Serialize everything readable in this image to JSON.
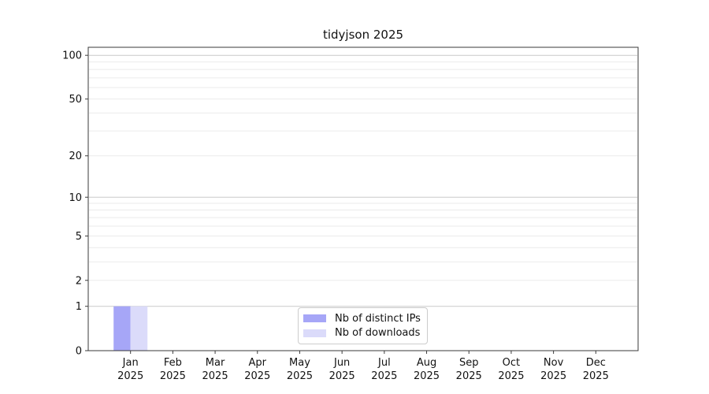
{
  "chart_data": {
    "type": "bar",
    "title": "tidyjson 2025",
    "categories": [
      "Jan 2025",
      "Feb 2025",
      "Mar 2025",
      "Apr 2025",
      "May 2025",
      "Jun 2025",
      "Jul 2025",
      "Aug 2025",
      "Sep 2025",
      "Oct 2025",
      "Nov 2025",
      "Dec 2025"
    ],
    "series": [
      {
        "name": "Nb of distinct IPs",
        "color": "#a6a6f7",
        "values": [
          1,
          0,
          0,
          0,
          0,
          0,
          0,
          0,
          0,
          0,
          0,
          0
        ]
      },
      {
        "name": "Nb of downloads",
        "color": "#dbdbfa",
        "values": [
          1,
          0,
          0,
          0,
          0,
          0,
          0,
          0,
          0,
          0,
          0,
          0
        ]
      }
    ],
    "xlabel": "",
    "ylabel": "",
    "y_scale": "log1p",
    "ylim": [
      0,
      113
    ],
    "y_ticks": [
      0,
      1,
      2,
      5,
      10,
      20,
      50,
      100
    ],
    "grid_major": [
      1,
      10,
      100
    ],
    "grid_minor": [
      2,
      3,
      4,
      5,
      6,
      7,
      8,
      9,
      20,
      30,
      40,
      50,
      60,
      70,
      80,
      90
    ],
    "legend": {
      "position": "bottom-center"
    },
    "colors": {
      "grid_major": "#c9c9c9",
      "grid_minor": "#ebebeb",
      "axis": "#3a3a3a",
      "text": "#111111",
      "legend_border": "#cccccc"
    }
  }
}
